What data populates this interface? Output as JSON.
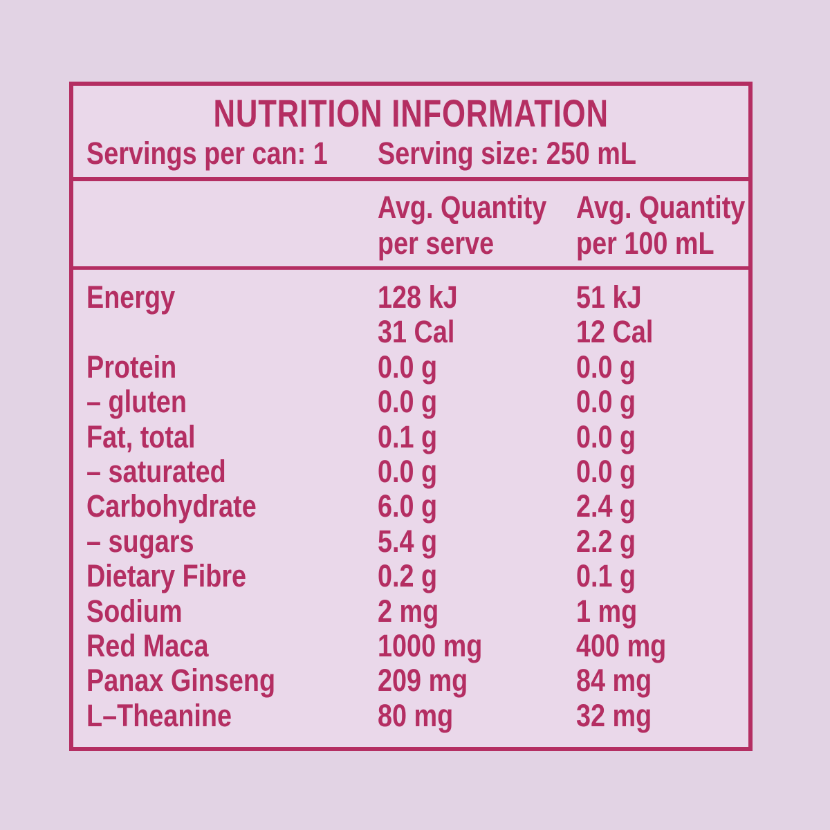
{
  "panel": {
    "title": "NUTRITION INFORMATION",
    "servings_per_can_label": "Servings per can: 1",
    "serving_size_label": "Serving size: 250 mL",
    "columns": [
      {
        "line1": "Avg. Quantity",
        "line2": "per serve"
      },
      {
        "line1": "Avg. Quantity",
        "line2": "per 100 mL"
      }
    ],
    "rows": [
      {
        "label": "Energy",
        "per_serve": "128 kJ",
        "per_100ml": "51 kJ"
      },
      {
        "label": "",
        "per_serve": "31 Cal",
        "per_100ml": "12 Cal"
      },
      {
        "label": "Protein",
        "per_serve": "0.0 g",
        "per_100ml": "0.0 g"
      },
      {
        "label": "– gluten",
        "per_serve": "0.0 g",
        "per_100ml": "0.0 g"
      },
      {
        "label": "Fat, total",
        "per_serve": "0.1 g",
        "per_100ml": "0.0 g"
      },
      {
        "label": "– saturated",
        "per_serve": "0.0 g",
        "per_100ml": "0.0 g"
      },
      {
        "label": "Carbohydrate",
        "per_serve": "6.0 g",
        "per_100ml": "2.4 g"
      },
      {
        "label": "– sugars",
        "per_serve": "5.4 g",
        "per_100ml": "2.2 g"
      },
      {
        "label": "Dietary Fibre",
        "per_serve": "0.2 g",
        "per_100ml": "0.1 g"
      },
      {
        "label": "Sodium",
        "per_serve": "2 mg",
        "per_100ml": "1 mg"
      },
      {
        "label": "Red Maca",
        "per_serve": "1000 mg",
        "per_100ml": "400 mg"
      },
      {
        "label": "Panax Ginseng",
        "per_serve": "209 mg",
        "per_100ml": "84 mg"
      },
      {
        "label": "L–Theanine",
        "per_serve": "80 mg",
        "per_100ml": "32 mg"
      }
    ],
    "colors": {
      "accent": "#b42e62",
      "background_outer": "#e2d3e4",
      "background_inner": "#ead8ea"
    }
  }
}
